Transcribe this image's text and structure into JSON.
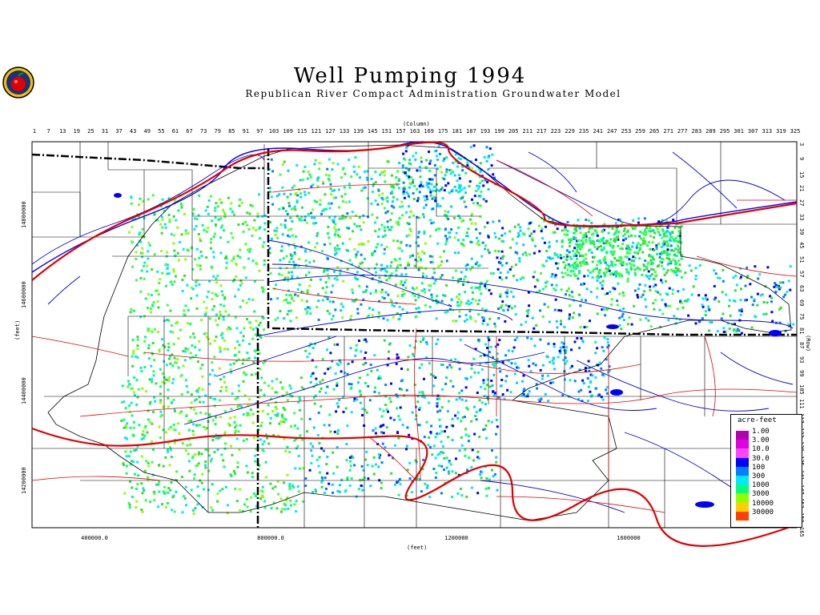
{
  "title": "Well Pumping 1994",
  "subtitle": "Republican River Compact Administration Groundwater Model",
  "logo_icon": "apple-seal-icon",
  "column_axis_label": "(Column)",
  "row_axis_label": "(Row)",
  "y_axis_label": "(feet)",
  "x_axis_label": "(feet)",
  "column_numbers": [
    "1",
    "7",
    "13",
    "19",
    "25",
    "31",
    "37",
    "43",
    "49",
    "55",
    "61",
    "67",
    "73",
    "79",
    "85",
    "91",
    "97",
    "103",
    "109",
    "115",
    "121",
    "127",
    "133",
    "139",
    "145",
    "151",
    "157",
    "163",
    "169",
    "175",
    "181",
    "187",
    "193",
    "199",
    "205",
    "211",
    "217",
    "223",
    "229",
    "235",
    "241",
    "247",
    "253",
    "259",
    "265",
    "271",
    "277",
    "283",
    "289",
    "295",
    "301",
    "307",
    "313",
    "319",
    "325"
  ],
  "row_numbers": [
    "3",
    "9",
    "15",
    "21",
    "27",
    "33",
    "39",
    "45",
    "51",
    "57",
    "63",
    "69",
    "75",
    "81",
    "87",
    "93",
    "99",
    "105",
    "111",
    "117",
    "123",
    "129",
    "135",
    "141",
    "147",
    "153",
    "159",
    "165"
  ],
  "x_ticks": [
    "400000.0",
    "800000.0",
    "1200000",
    "1600000"
  ],
  "y_ticks": [
    "14800000",
    "14600000",
    "14400000",
    "14200000"
  ],
  "legend": {
    "title": "acre-feet",
    "labels": [
      "1.00",
      "3.00",
      "10.0",
      "30.0",
      "100",
      "300",
      "1000",
      "3000",
      "10000",
      "30000"
    ],
    "colors": [
      "#b000b0",
      "#e000e0",
      "#ff44ff",
      "#0000ff",
      "#0080ff",
      "#00e8ff",
      "#00ff80",
      "#90ff00",
      "#ffd000",
      "#ff4000"
    ]
  },
  "colors": {
    "roads": "#e00000",
    "streams": "#0000cc",
    "boundaries": "#000000",
    "pumping_dense": "#33dd33",
    "pumping_light": "#00e0ff"
  }
}
